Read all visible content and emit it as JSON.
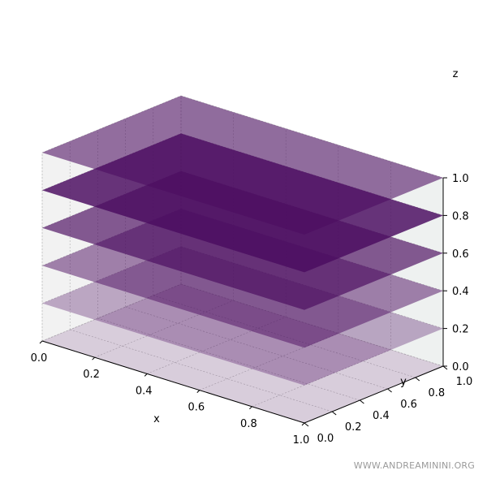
{
  "chart_data": {
    "type": "3d-surface-planes",
    "title": "",
    "xlabel": "x",
    "ylabel": "y",
    "zlabel": "z",
    "xlim": [
      0,
      1
    ],
    "ylim": [
      0,
      1
    ],
    "zlim": [
      0,
      1
    ],
    "xticks": [
      "0.0",
      "0.2",
      "0.4",
      "0.6",
      "0.8",
      "1.0"
    ],
    "yticks": [
      "0.0",
      "0.2",
      "0.4",
      "0.6",
      "0.8",
      "1.0"
    ],
    "zticks": [
      "0.0",
      "0.2",
      "0.4",
      "0.6",
      "0.8",
      "1.0"
    ],
    "grid": true,
    "colors": {
      "plane": "#4b0c60",
      "pane": "#f2f3f3",
      "grid": "#b0b0b0"
    },
    "series": [
      {
        "z": 0.0,
        "opacity": 0.17
      },
      {
        "z": 0.2,
        "opacity": 0.33
      },
      {
        "z": 0.4,
        "opacity": 0.5
      },
      {
        "z": 0.6,
        "opacity": 0.67
      },
      {
        "z": 0.8,
        "opacity": 0.83
      },
      {
        "z": 1.0,
        "opacity": 0.58
      }
    ]
  },
  "watermark": "WWW.ANDREAMININI.ORG"
}
